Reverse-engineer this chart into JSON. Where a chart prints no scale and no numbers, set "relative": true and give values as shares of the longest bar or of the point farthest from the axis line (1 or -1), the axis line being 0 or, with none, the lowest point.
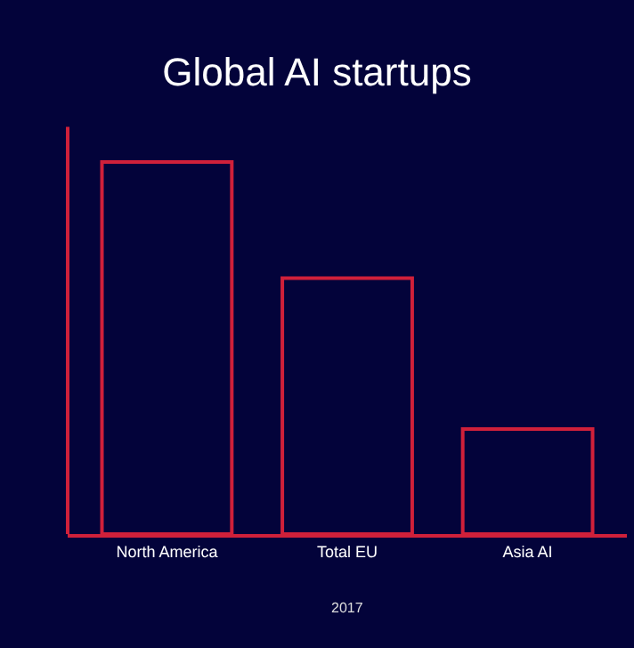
{
  "chart_data": {
    "type": "bar",
    "title": "Global AI startups",
    "categories": [
      "North America",
      "Total EU",
      "Asia AI"
    ],
    "values": [
      1,
      0.688,
      0.282
    ],
    "color": "#d0203a",
    "relative": true,
    "grid": false,
    "annotations": [
      "2017"
    ]
  }
}
